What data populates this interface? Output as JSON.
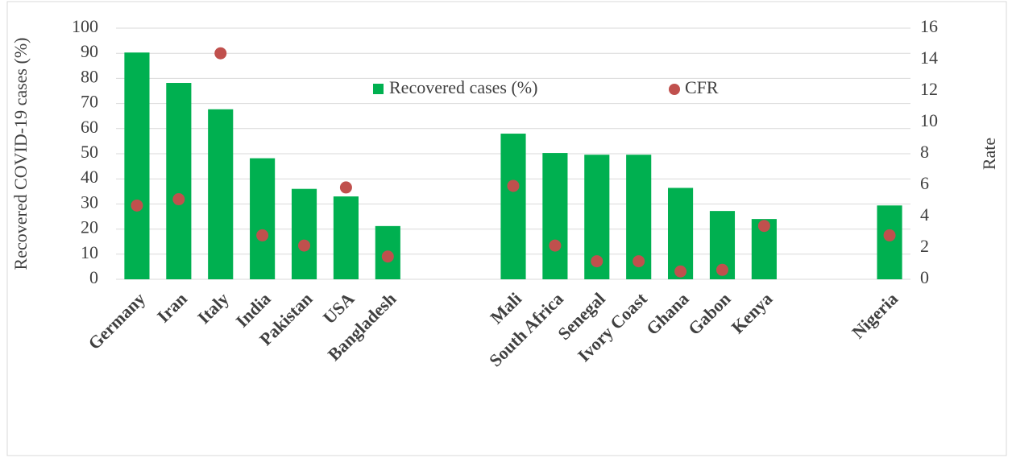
{
  "chart_data": {
    "type": "bar_dot",
    "categories": [
      "Germany",
      "Iran",
      "Italy",
      "India",
      "Pakistan",
      "USA",
      "Bangladesh",
      null,
      null,
      "Mali",
      "South Africa",
      "Senegal",
      "Ivory Coast",
      "Ghana",
      "Gabon",
      "Kenya",
      null,
      null,
      "Nigeria"
    ],
    "series": [
      {
        "name": "Recovered cases (%)",
        "color": "#00b050",
        "values": [
          90.3,
          78.2,
          67.7,
          48.2,
          36,
          33,
          21.2,
          null,
          null,
          58,
          50.3,
          49.6,
          49.6,
          36.4,
          27.2,
          24,
          null,
          null,
          29.4
        ]
      },
      {
        "name": "CFR",
        "color": "#c0504d",
        "axis": "y2",
        "values": [
          4.7,
          5.1,
          14.4,
          2.8,
          2.15,
          5.85,
          1.45,
          null,
          null,
          5.95,
          2.15,
          1.15,
          1.15,
          0.5,
          0.6,
          3.4,
          null,
          null,
          2.8
        ]
      }
    ],
    "ylabel": "Recovered COVID-19 cases (%)",
    "y2label": "Rate",
    "ylim": [
      0,
      100
    ],
    "yticks": [
      0,
      10,
      20,
      30,
      40,
      50,
      60,
      70,
      80,
      90,
      100
    ],
    "y2lim": [
      0,
      16
    ],
    "y2ticks": [
      0,
      2,
      4,
      6,
      8,
      10,
      12,
      14,
      16
    ],
    "grid": true
  }
}
